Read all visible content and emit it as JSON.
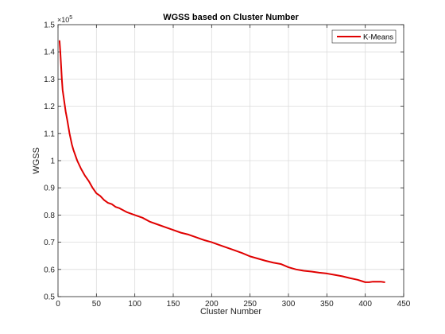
{
  "chart_data": {
    "type": "line",
    "title": "WGSS based on Cluster Number",
    "xlabel": "Cluster Number",
    "ylabel": "WGSS",
    "y_multiplier_label": "×10",
    "y_multiplier_exponent": "5",
    "xlim": [
      0,
      450
    ],
    "ylim": [
      0.5,
      1.5
    ],
    "x_ticks": [
      0,
      50,
      100,
      150,
      200,
      250,
      300,
      350,
      400,
      450
    ],
    "y_ticks": [
      0.5,
      0.6,
      0.7,
      0.8,
      0.9,
      1,
      1.1,
      1.2,
      1.3,
      1.4,
      1.5
    ],
    "x_tick_labels": [
      "0",
      "50",
      "100",
      "150",
      "200",
      "250",
      "300",
      "350",
      "400",
      "450"
    ],
    "y_tick_labels": [
      "0.5",
      "0.6",
      "0.7",
      "0.8",
      "0.9",
      "1",
      "1.1",
      "1.2",
      "1.3",
      "1.4",
      "1.5"
    ],
    "grid": true,
    "legend_position": "top-right",
    "series": [
      {
        "name": "K-Means",
        "color": "#e00000",
        "x": [
          2,
          3,
          4,
          5,
          6,
          8,
          10,
          12,
          15,
          18,
          20,
          25,
          30,
          35,
          40,
          45,
          50,
          55,
          60,
          65,
          70,
          75,
          80,
          90,
          100,
          110,
          120,
          130,
          140,
          150,
          160,
          170,
          180,
          190,
          200,
          210,
          220,
          230,
          240,
          250,
          260,
          270,
          280,
          290,
          300,
          310,
          320,
          330,
          340,
          350,
          360,
          370,
          380,
          390,
          400,
          405,
          410,
          415,
          420,
          425
        ],
        "values": [
          1.44,
          1.4,
          1.35,
          1.3,
          1.26,
          1.22,
          1.18,
          1.15,
          1.1,
          1.06,
          1.04,
          1.0,
          0.97,
          0.945,
          0.925,
          0.9,
          0.88,
          0.87,
          0.855,
          0.845,
          0.84,
          0.83,
          0.825,
          0.81,
          0.8,
          0.79,
          0.775,
          0.765,
          0.755,
          0.745,
          0.735,
          0.728,
          0.718,
          0.708,
          0.7,
          0.69,
          0.68,
          0.67,
          0.66,
          0.648,
          0.64,
          0.632,
          0.625,
          0.62,
          0.608,
          0.6,
          0.595,
          0.592,
          0.588,
          0.585,
          0.58,
          0.575,
          0.568,
          0.562,
          0.553,
          0.553,
          0.555,
          0.555,
          0.555,
          0.553
        ]
      }
    ]
  }
}
